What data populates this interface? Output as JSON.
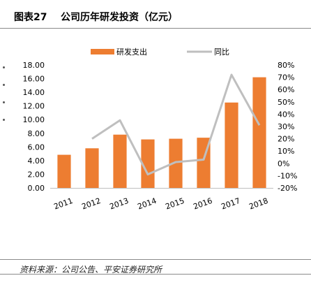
{
  "header": {
    "title": "图表27    公司历年研发投资（亿元）"
  },
  "footer": {
    "source": "资料来源：公司公告、平安证券研究所"
  },
  "colors": {
    "bar": "#ED7D31",
    "line": "#BFBFBF"
  },
  "chart_data": {
    "type": "bar",
    "categories": [
      "2011",
      "2012",
      "2013",
      "2014",
      "2015",
      "2016",
      "2017",
      "2018"
    ],
    "series": [
      {
        "name": "研发支出",
        "type": "bar",
        "axis": "left",
        "values": [
          4.85,
          5.8,
          7.8,
          7.1,
          7.2,
          7.35,
          12.5,
          16.2
        ]
      },
      {
        "name": "同比",
        "type": "line",
        "axis": "right",
        "values": [
          null,
          20,
          35,
          -9,
          1,
          3,
          72,
          31
        ]
      }
    ],
    "y_left": {
      "min": 0,
      "max": 18,
      "step": 2,
      "ticks": [
        "0.00",
        "2.00",
        "4.00",
        "6.00",
        "8.00",
        "10.00",
        "12.00",
        "14.00",
        "16.00",
        "18.00"
      ]
    },
    "y_right": {
      "min": -20,
      "max": 80,
      "step": 10,
      "ticks": [
        "-20%",
        "-10%",
        "0%",
        "10%",
        "20%",
        "30%",
        "40%",
        "50%",
        "60%",
        "70%",
        "80%"
      ]
    },
    "legend_position": "top",
    "grid": false
  }
}
